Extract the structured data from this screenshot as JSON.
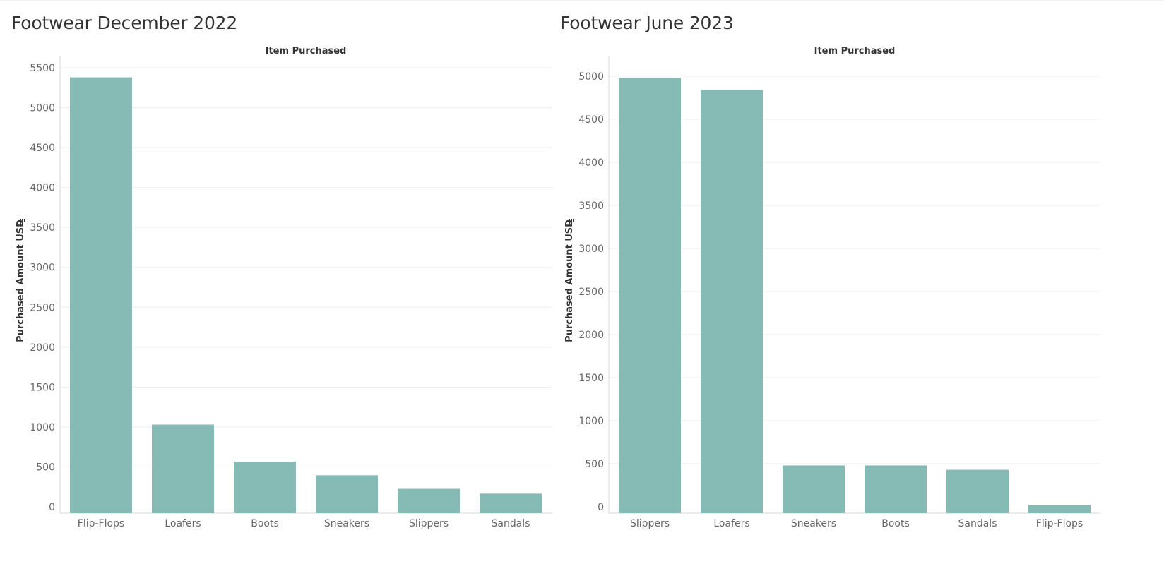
{
  "colors": {
    "bar": "#86bab5",
    "grid": "#eeeeee",
    "axis": "#d9d9d9"
  },
  "chart_data": [
    {
      "type": "bar",
      "title": "Footwear December 2022",
      "xlabel": "Item Purchased",
      "ylabel": "Purchased Amount USD",
      "ylabel_icon": "sort-descending-icon",
      "categories": [
        "Flip-Flops",
        "Loafers",
        "Boots",
        "Sneakers",
        "Slippers",
        "Sandals"
      ],
      "values": [
        5380,
        1030,
        565,
        395,
        225,
        165
      ],
      "yticks": [
        0,
        500,
        1000,
        1500,
        2000,
        2500,
        3000,
        3500,
        4000,
        4500,
        5000,
        5500
      ],
      "ylim": [
        -90,
        5600
      ],
      "grid": true
    },
    {
      "type": "bar",
      "title": "Footwear June 2023",
      "xlabel": "Item Purchased",
      "ylabel": "Purchased Amount USD",
      "ylabel_icon": "sort-descending-icon",
      "categories": [
        "Slippers",
        "Loafers",
        "Sneakers",
        "Boots",
        "Sandals",
        "Flip-Flops"
      ],
      "values": [
        4980,
        4840,
        480,
        480,
        430,
        20
      ],
      "yticks": [
        0,
        500,
        1000,
        1500,
        2000,
        2500,
        3000,
        3500,
        4000,
        4500,
        5000
      ],
      "ylim": [
        -80,
        5100
      ],
      "grid": true
    }
  ]
}
